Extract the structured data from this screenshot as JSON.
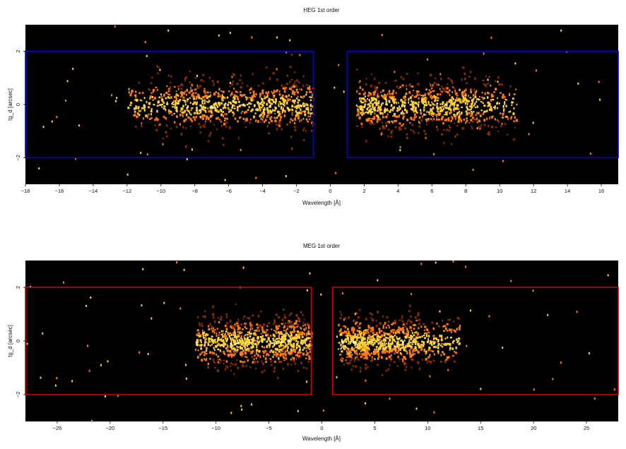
{
  "chart_data": [
    {
      "type": "heatmap",
      "title": "HEG 1st order",
      "xlabel": "Wavelength [Å]",
      "ylabel": "tg_d [arcsec]",
      "xlim": [
        -18,
        17
      ],
      "ylim": [
        -3,
        3
      ],
      "xticks": [
        -18,
        -16,
        -14,
        -12,
        -10,
        -8,
        -6,
        -4,
        -2,
        0,
        2,
        4,
        6,
        8,
        10,
        12,
        14,
        16
      ],
      "yticks": [
        -2,
        0,
        2
      ],
      "background": "#000000",
      "colormap": [
        "#8a2a00",
        "#ff7a10",
        "#ffd23a",
        "#ffffc8"
      ],
      "extraction_regions": {
        "color": "#0000ee",
        "boxes": [
          {
            "x": [
              -18,
              -1
            ],
            "y": [
              -2,
              2
            ]
          },
          {
            "x": [
              1,
              17
            ],
            "y": [
              -2,
              2
            ]
          }
        ]
      },
      "clusters": [
        {
          "x_range": [
            -12,
            -1
          ],
          "peaks": [
            -8,
            -3
          ],
          "y_sigma": 0.5
        },
        {
          "x_range": [
            1.5,
            11
          ],
          "peaks": [
            3,
            7
          ],
          "y_sigma": 0.5
        }
      ]
    },
    {
      "type": "heatmap",
      "title": "MEG 1st order",
      "xlabel": "Wavelength [Å]",
      "ylabel": "tg_d [arcsec]",
      "xlim": [
        -28,
        28
      ],
      "ylim": [
        -3,
        3
      ],
      "xticks": [
        -25,
        -20,
        -15,
        -10,
        -5,
        0,
        5,
        10,
        15,
        20,
        25
      ],
      "yticks": [
        -2,
        0,
        2
      ],
      "background": "#000000",
      "colormap": [
        "#8a2a00",
        "#ff7a10",
        "#ffd23a",
        "#ffffc8"
      ],
      "extraction_regions": {
        "color": "#cc0000",
        "boxes": [
          {
            "x": [
              -28,
              -1
            ],
            "y": [
              -2,
              2
            ]
          },
          {
            "x": [
              1,
              28
            ],
            "y": [
              -2,
              2
            ]
          }
        ]
      },
      "clusters": [
        {
          "x_range": [
            -12,
            -1
          ],
          "peaks": [
            -8,
            -3
          ],
          "y_sigma": 0.45
        },
        {
          "x_range": [
            1.5,
            13
          ],
          "peaks": [
            3,
            7
          ],
          "y_sigma": 0.45
        }
      ]
    }
  ]
}
